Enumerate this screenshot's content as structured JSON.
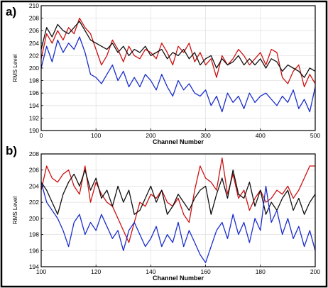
{
  "chart_data": [
    {
      "panel": "a)",
      "type": "line",
      "xlabel": "Channel Number",
      "ylabel": "RMS Level",
      "xlim": [
        0,
        500
      ],
      "ylim": [
        190,
        210
      ],
      "xticks": [
        0,
        100,
        200,
        300,
        400,
        500
      ],
      "yticks": [
        190,
        192,
        194,
        196,
        198,
        200,
        202,
        204,
        206,
        208,
        210
      ],
      "grid": true,
      "series": [
        {
          "color": "#cc1111",
          "x": [
            0,
            10,
            20,
            30,
            40,
            50,
            60,
            70,
            80,
            90,
            100,
            110,
            120,
            130,
            140,
            150,
            160,
            170,
            180,
            190,
            200,
            210,
            220,
            230,
            240,
            250,
            260,
            270,
            280,
            290,
            300,
            310,
            320,
            330,
            340,
            350,
            360,
            370,
            380,
            390,
            400,
            410,
            420,
            430,
            440,
            450,
            460,
            470,
            480,
            490,
            500
          ],
          "y": [
            201.5,
            205.5,
            204.0,
            206.0,
            204.5,
            206.5,
            205.5,
            208.0,
            206.5,
            205.5,
            203.0,
            200.5,
            202.0,
            204.5,
            203.0,
            201.0,
            203.5,
            202.0,
            201.5,
            203.0,
            202.5,
            201.5,
            204.0,
            202.5,
            200.5,
            203.5,
            202.5,
            204.0,
            201.0,
            202.5,
            200.5,
            201.5,
            198.5,
            202.0,
            200.5,
            201.5,
            203.0,
            202.0,
            200.5,
            201.5,
            202.5,
            200.5,
            203.0,
            202.5,
            198.5,
            197.5,
            199.5,
            200.5,
            197.0,
            199.0,
            197.5
          ]
        },
        {
          "color": "#111111",
          "x": [
            0,
            10,
            20,
            30,
            40,
            50,
            60,
            70,
            80,
            90,
            100,
            110,
            120,
            130,
            140,
            150,
            160,
            170,
            180,
            190,
            200,
            210,
            220,
            230,
            240,
            250,
            260,
            270,
            280,
            290,
            300,
            310,
            320,
            330,
            340,
            350,
            360,
            370,
            380,
            390,
            400,
            410,
            420,
            430,
            440,
            450,
            460,
            470,
            480,
            490,
            500
          ],
          "y": [
            203.0,
            206.5,
            205.0,
            207.0,
            206.0,
            205.5,
            206.5,
            207.5,
            206.0,
            204.5,
            204.0,
            203.5,
            203.0,
            204.0,
            202.5,
            203.5,
            202.0,
            203.0,
            202.5,
            203.5,
            202.0,
            202.5,
            203.0,
            201.5,
            202.5,
            202.0,
            203.0,
            201.5,
            202.5,
            200.5,
            201.5,
            202.0,
            200.0,
            201.5,
            200.5,
            201.0,
            202.0,
            200.5,
            201.5,
            200.5,
            201.5,
            200.0,
            201.5,
            201.0,
            199.5,
            200.5,
            200.0,
            199.5,
            198.5,
            200.0,
            199.5
          ]
        },
        {
          "color": "#1a2ecc",
          "x": [
            0,
            10,
            20,
            30,
            40,
            50,
            60,
            70,
            80,
            90,
            100,
            110,
            120,
            130,
            140,
            150,
            160,
            170,
            180,
            190,
            200,
            210,
            220,
            230,
            240,
            250,
            260,
            270,
            280,
            290,
            300,
            310,
            320,
            330,
            340,
            350,
            360,
            370,
            380,
            390,
            400,
            410,
            420,
            430,
            440,
            450,
            460,
            470,
            480,
            490,
            500
          ],
          "y": [
            200.0,
            203.5,
            201.0,
            204.5,
            202.5,
            204.0,
            203.0,
            205.0,
            202.5,
            199.0,
            198.5,
            197.5,
            199.0,
            200.5,
            198.0,
            199.5,
            197.0,
            198.5,
            197.0,
            199.0,
            198.0,
            196.5,
            199.0,
            197.0,
            195.5,
            198.0,
            196.5,
            197.5,
            196.0,
            195.5,
            196.5,
            194.0,
            195.5,
            193.0,
            196.0,
            194.5,
            195.5,
            193.5,
            196.0,
            194.5,
            195.5,
            196.0,
            195.0,
            194.0,
            195.5,
            194.5,
            196.5,
            193.5,
            195.0,
            193.0,
            197.0
          ]
        }
      ]
    },
    {
      "panel": "b)",
      "type": "line",
      "xlabel": "Channel Number",
      "ylabel": "RMS Level",
      "xlim": [
        100,
        200
      ],
      "ylim": [
        194,
        208
      ],
      "xticks": [
        100,
        120,
        140,
        160,
        180,
        200
      ],
      "yticks": [
        194,
        196,
        198,
        200,
        202,
        204,
        206,
        208
      ],
      "grid": true,
      "series": [
        {
          "color": "#cc1111",
          "x": [
            100,
            102,
            104,
            106,
            108,
            110,
            112,
            114,
            116,
            118,
            120,
            122,
            124,
            126,
            128,
            130,
            132,
            134,
            136,
            138,
            140,
            142,
            144,
            146,
            148,
            150,
            152,
            154,
            156,
            158,
            160,
            162,
            164,
            166,
            168,
            170,
            172,
            174,
            176,
            178,
            180,
            182,
            184,
            186,
            188,
            190,
            192,
            194,
            196,
            198,
            200
          ],
          "y": [
            203.5,
            206.5,
            205.0,
            204.5,
            205.5,
            206.0,
            204.0,
            203.0,
            206.5,
            202.0,
            204.5,
            203.0,
            202.0,
            201.5,
            200.0,
            198.5,
            197.0,
            199.5,
            202.0,
            201.5,
            203.0,
            202.5,
            203.5,
            202.0,
            201.5,
            202.5,
            200.5,
            199.5,
            203.5,
            206.5,
            205.0,
            204.5,
            203.5,
            207.5,
            203.0,
            205.5,
            202.5,
            203.5,
            201.0,
            202.5,
            203.5,
            202.0,
            202.5,
            203.5,
            203.0,
            204.0,
            202.5,
            203.5,
            205.0,
            206.5,
            206.5
          ]
        },
        {
          "color": "#111111",
          "x": [
            100,
            102,
            104,
            106,
            108,
            110,
            112,
            114,
            116,
            118,
            120,
            122,
            124,
            126,
            128,
            130,
            132,
            134,
            136,
            138,
            140,
            142,
            144,
            146,
            148,
            150,
            152,
            154,
            156,
            158,
            160,
            162,
            164,
            166,
            168,
            170,
            172,
            174,
            176,
            178,
            180,
            182,
            184,
            186,
            188,
            190,
            192,
            194,
            196,
            198,
            200
          ],
          "y": [
            204.5,
            203.5,
            202.0,
            200.5,
            203.0,
            204.5,
            205.5,
            204.0,
            206.0,
            203.5,
            205.0,
            202.5,
            203.5,
            201.5,
            204.0,
            202.0,
            203.5,
            200.5,
            201.0,
            202.5,
            204.0,
            202.0,
            203.5,
            200.5,
            201.5,
            203.0,
            202.0,
            201.0,
            202.5,
            203.5,
            204.0,
            200.5,
            203.0,
            205.0,
            202.5,
            206.0,
            203.0,
            202.5,
            204.5,
            201.5,
            203.5,
            200.5,
            202.0,
            201.0,
            202.5,
            203.5,
            201.0,
            202.5,
            200.5,
            202.0,
            203.0
          ]
        },
        {
          "color": "#1a2ecc",
          "x": [
            100,
            102,
            104,
            106,
            108,
            110,
            112,
            114,
            116,
            118,
            120,
            122,
            124,
            126,
            128,
            130,
            132,
            134,
            136,
            138,
            140,
            142,
            144,
            146,
            148,
            150,
            152,
            154,
            156,
            158,
            160,
            162,
            164,
            166,
            168,
            170,
            172,
            174,
            176,
            178,
            180,
            182,
            184,
            186,
            188,
            190,
            192,
            194,
            196,
            198,
            200
          ],
          "y": [
            204.5,
            202.0,
            201.0,
            200.0,
            198.5,
            196.5,
            199.5,
            200.5,
            198.0,
            199.5,
            198.5,
            200.5,
            199.0,
            197.5,
            198.5,
            196.0,
            198.5,
            199.5,
            198.0,
            196.5,
            197.5,
            199.0,
            196.5,
            198.0,
            197.0,
            199.5,
            196.5,
            198.5,
            197.0,
            195.5,
            194.5,
            196.5,
            198.5,
            199.5,
            197.5,
            200.5,
            198.0,
            199.5,
            197.0,
            200.0,
            198.5,
            204.0,
            199.5,
            201.0,
            198.0,
            200.0,
            197.5,
            199.0,
            196.5,
            198.5,
            196.0
          ]
        }
      ]
    }
  ]
}
